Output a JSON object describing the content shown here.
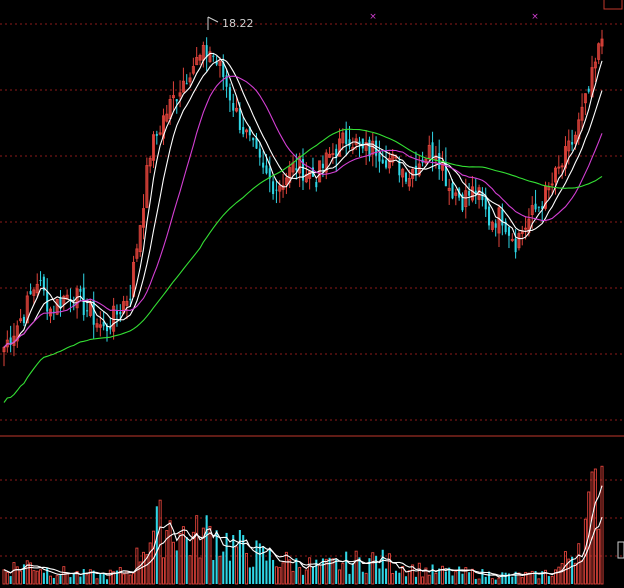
{
  "chart_data": {
    "type": "candlestick",
    "title": "",
    "max_price_label": "18.22",
    "colors": {
      "background": "#000000",
      "up": "#e0433b",
      "down": "#2fd6e6",
      "grid": "#8b1a1a",
      "ma5": "#ffffff",
      "ma10": "#ffffff",
      "ma20": "#d43fd4",
      "ma60": "#34e034",
      "vol_ma": "#ffffff"
    },
    "price_range": [
      9.0,
      19.0
    ],
    "grid": true,
    "anchors": [
      [
        0,
        11.0
      ],
      [
        6,
        11.8
      ],
      [
        10,
        12.6
      ],
      [
        14,
        11.9
      ],
      [
        20,
        12.3
      ],
      [
        26,
        11.8
      ],
      [
        30,
        11.4
      ],
      [
        34,
        11.8
      ],
      [
        38,
        12.3
      ],
      [
        44,
        15.6
      ],
      [
        48,
        16.4
      ],
      [
        52,
        17.0
      ],
      [
        56,
        17.6
      ],
      [
        62,
        18.0
      ],
      [
        66,
        17.4
      ],
      [
        70,
        16.5
      ],
      [
        74,
        15.8
      ],
      [
        78,
        15.1
      ],
      [
        82,
        14.8
      ],
      [
        88,
        15.3
      ],
      [
        94,
        15.0
      ],
      [
        98,
        15.5
      ],
      [
        104,
        16.0
      ],
      [
        108,
        15.6
      ],
      [
        112,
        15.7
      ],
      [
        118,
        15.3
      ],
      [
        122,
        15.1
      ],
      [
        126,
        15.5
      ],
      [
        130,
        15.7
      ],
      [
        134,
        14.8
      ],
      [
        138,
        14.5
      ],
      [
        142,
        14.7
      ],
      [
        146,
        14.0
      ],
      [
        150,
        14.1
      ],
      [
        154,
        13.5
      ],
      [
        158,
        14.0
      ],
      [
        164,
        14.7
      ],
      [
        168,
        15.3
      ],
      [
        172,
        16.0
      ],
      [
        176,
        17.0
      ],
      [
        180,
        18.3
      ]
    ],
    "volume_anchors": [
      [
        0,
        0.1
      ],
      [
        8,
        0.14
      ],
      [
        14,
        0.09
      ],
      [
        22,
        0.07
      ],
      [
        30,
        0.06
      ],
      [
        38,
        0.09
      ],
      [
        44,
        0.35
      ],
      [
        50,
        0.42
      ],
      [
        56,
        0.3
      ],
      [
        62,
        0.36
      ],
      [
        68,
        0.28
      ],
      [
        74,
        0.22
      ],
      [
        80,
        0.18
      ],
      [
        88,
        0.14
      ],
      [
        96,
        0.12
      ],
      [
        104,
        0.15
      ],
      [
        112,
        0.17
      ],
      [
        120,
        0.12
      ],
      [
        128,
        0.09
      ],
      [
        136,
        0.08
      ],
      [
        144,
        0.07
      ],
      [
        152,
        0.06
      ],
      [
        160,
        0.06
      ],
      [
        166,
        0.09
      ],
      [
        170,
        0.18
      ],
      [
        174,
        0.35
      ],
      [
        178,
        0.6
      ],
      [
        180,
        0.85
      ]
    ],
    "bar_count": 181
  }
}
